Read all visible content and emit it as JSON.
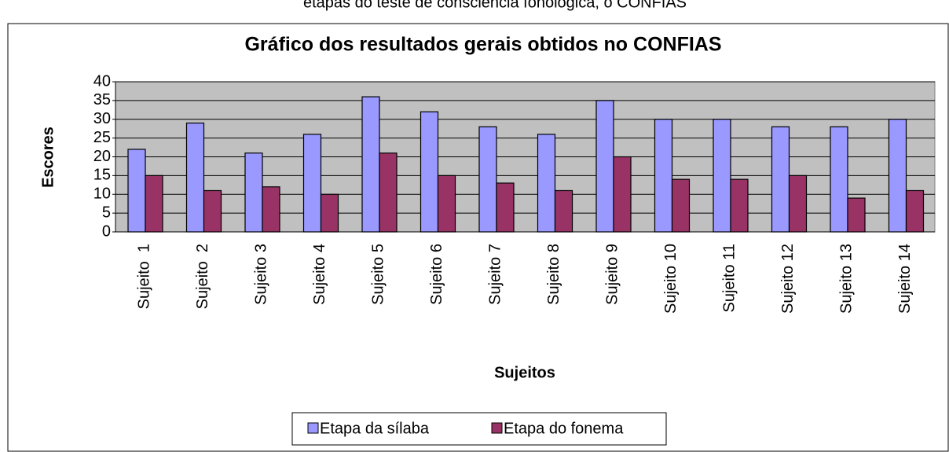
{
  "header_text": "etapas do teste de consciência fonológica, o CONFIAS",
  "chart_data": {
    "type": "bar",
    "title": "Gráfico dos resultados gerais obtidos no CONFIAS",
    "x_label": "Sujeitos",
    "y_label": "Escores",
    "categories": [
      "Sujeito  1",
      "Sujeito  2",
      "Sujeito 3",
      "Sujeito 4",
      "Sujeito 5",
      "Sujeito 6",
      "Sujeito 7",
      "Sujeito 8",
      "Sujeito 9",
      "Sujeito 10",
      "Sujeito 11",
      "Sujeito 12",
      "Sujeito 13",
      "Sujeito 14"
    ],
    "series": [
      {
        "name": "Etapa da sílaba",
        "color": "#9999ff",
        "values": [
          22,
          29,
          21,
          26,
          36,
          32,
          28,
          26,
          35,
          30,
          30,
          28,
          28,
          30
        ]
      },
      {
        "name": "Etapa do fonema",
        "color": "#993366",
        "values": [
          15,
          11,
          12,
          10,
          21,
          15,
          13,
          11,
          20,
          14,
          14,
          15,
          9,
          11
        ]
      }
    ],
    "ylim": [
      0,
      40
    ],
    "yticks": [
      0,
      5,
      10,
      15,
      20,
      25,
      30,
      35,
      40
    ],
    "grid": true,
    "legend": "bottom"
  }
}
